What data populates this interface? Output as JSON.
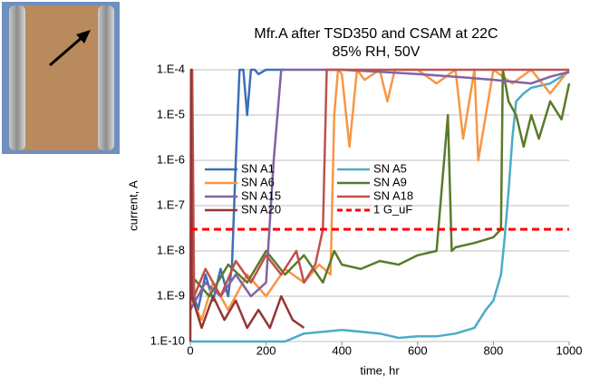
{
  "chart_data": {
    "type": "line",
    "title": "Mfr.A after TSD350 and CSAM at 22C",
    "subtitle": "85% RH, 50V",
    "x_label": "time, hr",
    "y_label": "current, A",
    "yscale": "log",
    "grid": true,
    "legend": "left",
    "xlim": [
      0,
      1000
    ],
    "xticks": [
      0,
      200,
      400,
      600,
      800,
      1000
    ],
    "ylim": [
      1e-10,
      0.0001
    ],
    "yticks": [
      {
        "value": 1e-10,
        "label": "1.E-10"
      },
      {
        "value": 1e-09,
        "label": "1.E-9"
      },
      {
        "value": 1e-08,
        "label": "1.E-8"
      },
      {
        "value": 1e-07,
        "label": "1.E-7"
      },
      {
        "value": 1e-06,
        "label": "1.E-6"
      },
      {
        "value": 1e-05,
        "label": "1.E-5"
      },
      {
        "value": 0.0001,
        "label": "1.E-4"
      }
    ],
    "series": [
      {
        "name": "SN A1",
        "color": "#3d6fb6",
        "x": [
          0,
          20,
          40,
          60,
          80,
          100,
          110,
          120,
          130,
          140,
          150,
          160,
          170,
          180,
          200,
          220,
          240,
          250
        ],
        "values": [
          2e-09,
          5e-10,
          3e-09,
          8e-10,
          4e-09,
          1e-09,
          5e-09,
          1e-06,
          0.0001,
          0.0001,
          1e-05,
          0.0001,
          0.0001,
          8e-05,
          0.0001,
          0.0001,
          0.0001,
          0.0001
        ]
      },
      {
        "name": "SN A5",
        "color": "#4bacc6",
        "x": [
          0,
          100,
          200,
          250,
          300,
          400,
          500,
          550,
          600,
          650,
          700,
          750,
          780,
          800,
          820,
          830,
          840,
          850,
          860,
          880,
          900,
          950,
          1000
        ],
        "values": [
          1e-10,
          1e-10,
          1e-10,
          1e-10,
          1.5e-10,
          1.8e-10,
          1.5e-10,
          1.2e-10,
          1.3e-10,
          1.3e-10,
          1.5e-10,
          2e-10,
          5e-10,
          8e-10,
          3e-09,
          2e-08,
          2e-07,
          3e-06,
          2e-05,
          3e-05,
          4e-05,
          5e-05,
          9e-05
        ]
      },
      {
        "name": "SN A6",
        "color": "#f79646",
        "x": [
          0,
          30,
          60,
          100,
          150,
          200,
          250,
          300,
          340,
          370,
          380,
          390,
          400,
          420,
          440,
          460,
          500,
          520,
          540,
          600,
          650,
          700,
          720,
          750,
          760,
          800,
          850,
          900,
          950,
          1000
        ],
        "values": [
          1e-09,
          3e-10,
          2e-09,
          5e-10,
          3e-09,
          1e-09,
          4e-09,
          2e-09,
          5e-09,
          3e-09,
          1e-05,
          0.0001,
          8e-05,
          2e-06,
          0.0001,
          6e-05,
          0.0001,
          2e-05,
          0.0001,
          0.0001,
          5e-05,
          0.0001,
          3e-06,
          0.0001,
          1e-06,
          0.0001,
          5e-05,
          0.0001,
          3e-05,
          0.0001
        ]
      },
      {
        "name": "SN A9",
        "color": "#5b7a2a",
        "x": [
          0,
          50,
          100,
          150,
          200,
          250,
          300,
          350,
          380,
          400,
          450,
          500,
          550,
          600,
          650,
          680,
          690,
          700,
          750,
          800,
          820,
          825,
          840,
          860,
          880,
          900,
          920,
          950,
          980,
          1000
        ],
        "values": [
          3e-09,
          1e-09,
          5e-09,
          2e-09,
          1e-08,
          3e-09,
          8e-09,
          2e-09,
          1e-08,
          5e-09,
          4e-09,
          6e-09,
          5e-09,
          8e-09,
          1e-08,
          1e-05,
          1e-08,
          1.2e-08,
          1.5e-08,
          2e-08,
          3e-08,
          0.0001,
          2e-05,
          1e-05,
          2e-06,
          1e-05,
          3e-06,
          2e-05,
          8e-06,
          5e-05
        ]
      },
      {
        "name": "SN A15",
        "color": "#8064a2",
        "x": [
          0,
          40,
          80,
          120,
          160,
          200,
          220,
          240,
          300,
          400,
          500,
          600,
          700,
          800,
          900,
          950,
          1000
        ],
        "values": [
          5e-10,
          2e-09,
          1e-09,
          3e-09,
          1e-09,
          2e-09,
          1e-06,
          0.0001,
          0.0001,
          0.0001,
          9e-05,
          8e-05,
          7e-05,
          6e-05,
          5e-05,
          7e-05,
          9e-05
        ]
      },
      {
        "name": "SN A18",
        "color": "#c0504d",
        "x": [
          0,
          5,
          10,
          40,
          80,
          120,
          160,
          200,
          240,
          280,
          300,
          330,
          350,
          360,
          400,
          500,
          600,
          700,
          800,
          900,
          1000
        ],
        "values": [
          0.0001,
          0.0001,
          1e-09,
          4e-09,
          1e-09,
          6e-09,
          2e-09,
          8e-09,
          3e-09,
          1e-08,
          2e-09,
          5e-09,
          3e-08,
          0.0001,
          0.0001,
          0.0001,
          0.0001,
          0.0001,
          0.0001,
          0.0001,
          0.0001
        ]
      },
      {
        "name": "SN A20",
        "color": "#943634",
        "x": [
          0,
          2,
          4,
          30,
          60,
          90,
          120,
          150,
          180,
          210,
          240,
          270,
          300
        ],
        "values": [
          1e-10,
          0.0001,
          1e-09,
          2e-10,
          1e-09,
          3e-10,
          8e-10,
          2e-10,
          5e-10,
          2e-10,
          1e-09,
          3e-10,
          2e-10
        ]
      },
      {
        "name": "1 G_uF",
        "color": "#ff0000",
        "dashed": true,
        "x": [
          0,
          1000
        ],
        "values": [
          3e-08,
          3e-08
        ]
      }
    ]
  }
}
